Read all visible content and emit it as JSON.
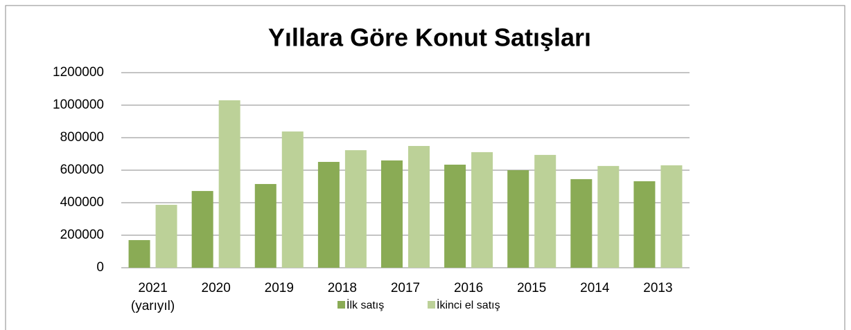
{
  "chart_data": {
    "type": "bar",
    "title": "Yıllara Göre Konut Satışları",
    "categories": [
      "2021 (yarıyıl)",
      "2020",
      "2019",
      "2018",
      "2017",
      "2016",
      "2015",
      "2014",
      "2013"
    ],
    "series": [
      {
        "name": "İlk satış",
        "color": "#8aab55",
        "values": [
          170000,
          472000,
          515000,
          651000,
          660000,
          634000,
          600000,
          545000,
          532000
        ]
      },
      {
        "name": "İkinci el satış",
        "color": "#bcd198",
        "values": [
          387000,
          1030000,
          838000,
          723000,
          749000,
          711000,
          694000,
          626000,
          630000
        ]
      }
    ],
    "ylim": [
      0,
      1200000
    ],
    "yticks": [
      0,
      200000,
      400000,
      600000,
      800000,
      1000000,
      1200000
    ],
    "grid": true,
    "legend": "bottom"
  }
}
